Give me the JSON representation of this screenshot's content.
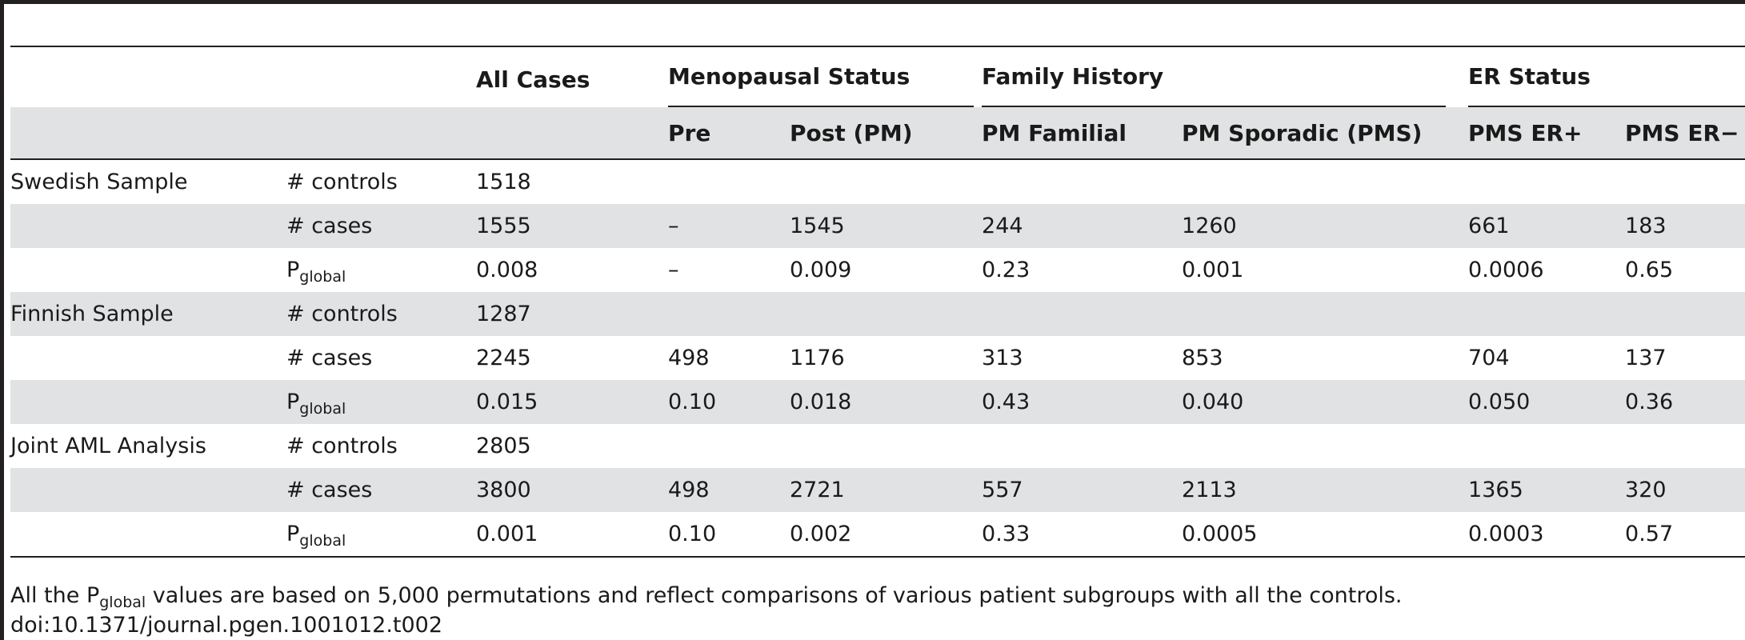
{
  "header": {
    "all_cases": "All Cases",
    "menopausal_status": "Menopausal Status",
    "family_history": "Family History",
    "er_status": "ER Status",
    "sub": {
      "pre": "Pre",
      "post": "Post (PM)",
      "pm_familial": "PM Familial",
      "pm_sporadic": "PM Sporadic (PMS)",
      "pms_er_pos": "PMS ER+",
      "pms_er_neg": "PMS ER−"
    }
  },
  "labels": {
    "controls": "# controls",
    "cases": "# cases",
    "p_main": "P",
    "p_sub": "global"
  },
  "groups": [
    {
      "name": "Swedish Sample",
      "controls": "1518",
      "cases": [
        "1555",
        "–",
        "1545",
        "244",
        "1260",
        "661",
        "183"
      ],
      "p": [
        "0.008",
        "–",
        "0.009",
        "0.23",
        "0.001",
        "0.0006",
        "0.65"
      ]
    },
    {
      "name": "Finnish Sample",
      "controls": "1287",
      "cases": [
        "2245",
        "498",
        "1176",
        "313",
        "853",
        "704",
        "137"
      ],
      "p": [
        "0.015",
        "0.10",
        "0.018",
        "0.43",
        "0.040",
        "0.050",
        "0.36"
      ]
    },
    {
      "name": "Joint AML Analysis",
      "controls": "2805",
      "cases": [
        "3800",
        "498",
        "2721",
        "557",
        "2113",
        "1365",
        "320"
      ],
      "p": [
        "0.001",
        "0.10",
        "0.002",
        "0.33",
        "0.0005",
        "0.0003",
        "0.57"
      ]
    }
  ],
  "footnote": {
    "pre": "All the P",
    "sub": "global",
    "post": " values are based on 5,000 permutations and reflect comparisons of various patient subgroups with all the controls.",
    "doi": "doi:10.1371/journal.pgen.1001012.t002"
  }
}
